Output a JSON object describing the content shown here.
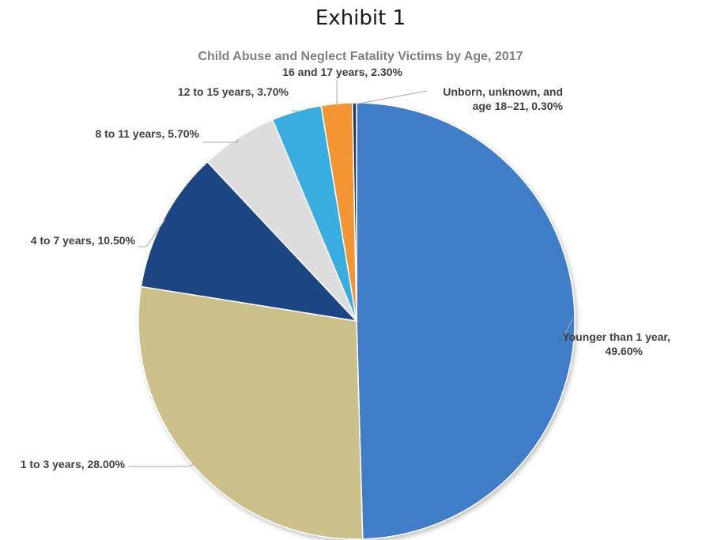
{
  "heading": "Exhibit 1",
  "chart_data": {
    "type": "pie",
    "title": "Child Abuse and Neglect Fatality Victims by Age, 2017",
    "start": "12 o'clock, clockwise",
    "slices": [
      {
        "label": "Younger than 1 year",
        "value": 49.6,
        "value_text": "49.60%",
        "color": "#3f7dc8",
        "label_lines": [
          "Younger than 1 year,",
          "49.60%"
        ]
      },
      {
        "label": "1 to 3 years",
        "value": 28.0,
        "value_text": "28.00%",
        "color": "#cbc08a",
        "label_lines": [
          "1 to 3 years, 28.00%"
        ]
      },
      {
        "label": "4 to 7 years",
        "value": 10.5,
        "value_text": "10.50%",
        "color": "#1b4484",
        "label_lines": [
          "4 to 7 years, 10.50%"
        ]
      },
      {
        "label": "8 to 11 years",
        "value": 5.7,
        "value_text": "5.70%",
        "color": "#dddddd",
        "label_lines": [
          "8 to 11 years, 5.70%"
        ]
      },
      {
        "label": "12 to 15 years",
        "value": 3.7,
        "value_text": "3.70%",
        "color": "#38aee0",
        "label_lines": [
          "12 to 15 years, 3.70%"
        ]
      },
      {
        "label": "16 and 17 years",
        "value": 2.3,
        "value_text": "2.30%",
        "color": "#f29533",
        "label_lines": [
          "16 and 17 years, 2.30%"
        ]
      },
      {
        "label": "Unborn, unknown, and age 18–21",
        "value": 0.3,
        "value_text": "0.30%",
        "color": "#1b3a6a",
        "label_lines": [
          "Unborn, unknown, and",
          "age 18–21, 0.30%"
        ]
      }
    ]
  }
}
